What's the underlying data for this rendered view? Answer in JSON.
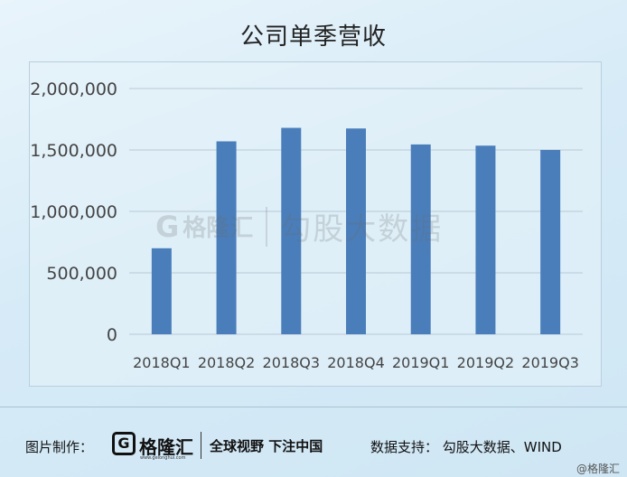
{
  "chart_data": {
    "type": "bar",
    "title": "公司单季营收",
    "categories": [
      "2018Q1",
      "2018Q2",
      "2018Q3",
      "2018Q4",
      "2019Q1",
      "2019Q2",
      "2019Q3"
    ],
    "values": [
      700000,
      1570000,
      1680000,
      1675000,
      1545000,
      1535000,
      1500000
    ],
    "ylim": [
      0,
      2000000
    ],
    "yticks": [
      "0",
      "500,000",
      "1,000,000",
      "1,500,000",
      "2,000,000"
    ],
    "ytick_values": [
      0,
      500000,
      1000000,
      1500000,
      2000000
    ],
    "grid": true,
    "bar_color": "#4a7ebb",
    "grid_color": "#b8cad6"
  },
  "watermark": {
    "logo_letter": "G",
    "brand": "格隆汇",
    "source": "勾股大数据"
  },
  "footer": {
    "made_label": "图片制作：",
    "logo_letter": "G",
    "logo_name": "格隆汇",
    "logo_url": "www.gelonghui.com",
    "slogan": "全球视野 下注中国",
    "source_label": "数据支持： 勾股大数据、WIND"
  },
  "copyright": "@格隆汇"
}
